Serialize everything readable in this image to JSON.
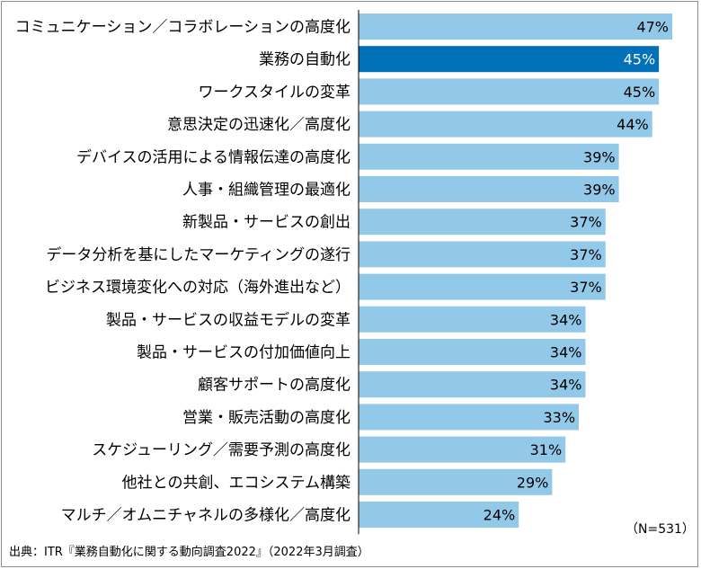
{
  "colors": {
    "bar": "#92c8e8",
    "highlight": "#0070b8",
    "axis": "#000000"
  },
  "chart_data": {
    "type": "bar",
    "orientation": "horizontal",
    "xlim": [
      0,
      47
    ],
    "highlight_index": 1,
    "categories": [
      "コミュニケーション／コラボレーションの高度化",
      "業務の自動化",
      "ワークスタイルの変革",
      "意思決定の迅速化／高度化",
      "デバイスの活用による情報伝達の高度化",
      "人事・組織管理の最適化",
      "新製品・サービスの創出",
      "データ分析を基にしたマーケティングの遂行",
      "ビジネス環境変化への対応（海外進出など）",
      "製品・サービスの収益モデルの変革",
      "製品・サービスの付加価値向上",
      "顧客サポートの高度化",
      "営業・販売活動の高度化",
      "スケジューリング／需要予測の高度化",
      "他社との共創、エコシステム構築",
      "マルチ／オムニチャネルの多様化／高度化"
    ],
    "values": [
      47,
      45,
      45,
      44,
      39,
      39,
      37,
      37,
      37,
      34,
      34,
      34,
      33,
      31,
      29,
      24
    ],
    "value_labels": [
      "47%",
      "45%",
      "45%",
      "44%",
      "39%",
      "39%",
      "37%",
      "37%",
      "37%",
      "34%",
      "34%",
      "34%",
      "33%",
      "31%",
      "29%",
      "24%"
    ],
    "n_label": "（N=531）",
    "source": "出典：ITR『業務自動化に関する動向調査2022』（2022年3月調査）"
  }
}
